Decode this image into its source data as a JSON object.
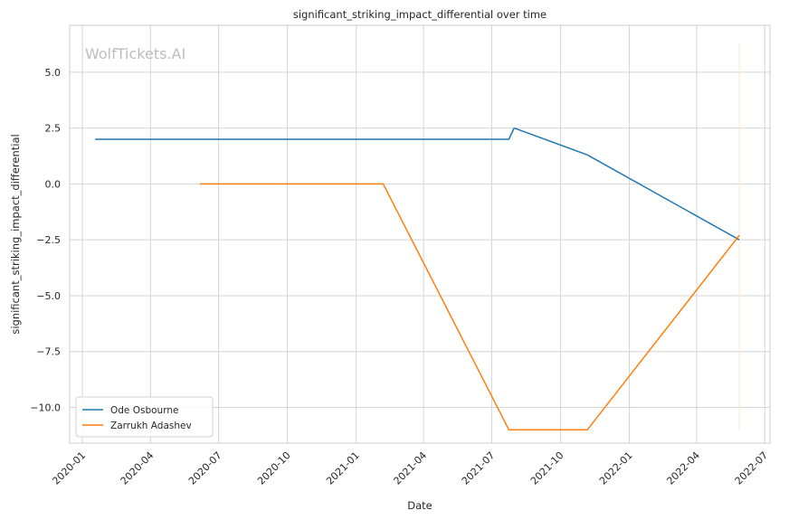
{
  "chart_data": {
    "type": "line",
    "title": "significant_striking_impact_differential over time",
    "xlabel": "Date",
    "ylabel": "significant_striking_impact_differential",
    "watermark": "WolfTickets.AI",
    "x_axis": {
      "type": "date",
      "min": "2019-12-15",
      "max": "2022-07-08",
      "ticks": [
        "2020-01",
        "2020-04",
        "2020-07",
        "2020-10",
        "2021-01",
        "2021-04",
        "2021-07",
        "2021-10",
        "2022-01",
        "2022-04",
        "2022-07"
      ]
    },
    "y_axis": {
      "min": -11.6,
      "max": 7.1,
      "ticks": [
        5.0,
        2.5,
        0.0,
        -2.5,
        -5.0,
        -7.5,
        -10.0
      ],
      "tick_labels": [
        "5.0",
        "2.5",
        "0.0",
        "−2.5",
        "−5.0",
        "−7.5",
        "−10.0"
      ]
    },
    "grid": true,
    "legend": "lower-left",
    "series": [
      {
        "name": "Ode Osbourne",
        "color": "#1f77b4",
        "points": [
          {
            "x": "2020-01-18",
            "y": 2.0
          },
          {
            "x": "2021-07-24",
            "y": 2.0
          },
          {
            "x": "2021-07-31",
            "y": 2.5
          },
          {
            "x": "2021-11-06",
            "y": 1.3
          },
          {
            "x": "2022-05-28",
            "y": -2.5
          }
        ]
      },
      {
        "name": "Zarrukh Adashev",
        "color": "#ff7f0e",
        "points": [
          {
            "x": "2020-06-06",
            "y": 0.0
          },
          {
            "x": "2021-02-06",
            "y": 0.0
          },
          {
            "x": "2021-07-24",
            "y": -11.0
          },
          {
            "x": "2021-11-06",
            "y": -11.0
          },
          {
            "x": "2022-05-28",
            "y": -2.3
          }
        ]
      }
    ],
    "marker_line": {
      "x": "2022-05-28",
      "y_from": -11.0,
      "y_to": 6.3,
      "color": "#ffe3cc"
    }
  }
}
